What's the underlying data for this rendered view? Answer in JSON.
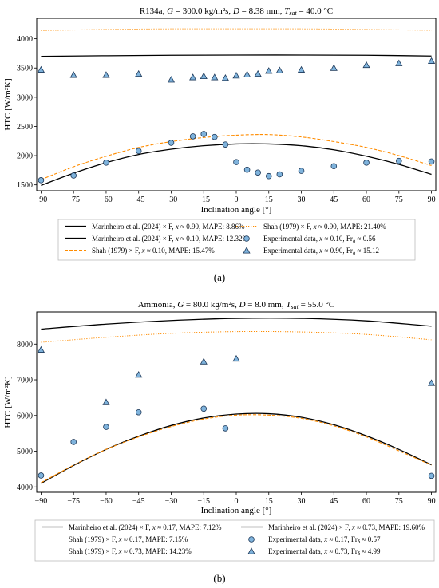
{
  "chart_data": [
    {
      "type": "line",
      "panel_label": "(a)",
      "title": "R134a, G = 300.0 kg/m²s, D = 8.38 mm, T_sat = 40.0 °C",
      "title_parts": {
        "fluid": "R134a, ",
        "G": "G",
        "G_val": " = 300.0 kg/m²s, ",
        "D": "D",
        "D_val": " = 8.38 mm, ",
        "T": "T",
        "T_sub": "sat",
        "T_val": " = 40.0 °C"
      },
      "xlabel": "Inclination angle [°]",
      "ylabel": "HTC [W/m²K]",
      "xlim": [
        -92,
        92
      ],
      "ylim": [
        1400,
        4350
      ],
      "xticks": [
        -90,
        -75,
        -60,
        -45,
        -30,
        -15,
        0,
        15,
        30,
        45,
        60,
        75,
        90
      ],
      "yticks": [
        1500,
        2000,
        2500,
        3000,
        3500,
        4000
      ],
      "series": [
        {
          "name": "Marinheiro et al. (2024) × F, x ≈ 0.90, MAPE: 8.86%",
          "style": "solid",
          "color": "#000000",
          "x": [
            -90,
            -60,
            -30,
            0,
            30,
            60,
            90
          ],
          "y": [
            3700,
            3710,
            3718,
            3722,
            3722,
            3718,
            3705
          ]
        },
        {
          "name": "Marinheiro et al. (2024) × F, x ≈ 0.10, MAPE: 12.32%",
          "style": "solid",
          "color": "#000000",
          "x": [
            -90,
            -75,
            -60,
            -45,
            -30,
            -15,
            0,
            15,
            30,
            45,
            60,
            75,
            90
          ],
          "y": [
            1490,
            1700,
            1880,
            2020,
            2110,
            2170,
            2200,
            2200,
            2170,
            2100,
            1990,
            1850,
            1680
          ]
        },
        {
          "name": "Shah (1979) × F, x ≈ 0.10, MAPE: 15.47%",
          "style": "dashed",
          "color": "#ff8c00",
          "x": [
            -90,
            -75,
            -60,
            -45,
            -30,
            -15,
            0,
            15,
            30,
            45,
            60,
            75,
            90
          ],
          "y": [
            1590,
            1810,
            1990,
            2140,
            2240,
            2310,
            2350,
            2360,
            2320,
            2240,
            2140,
            2000,
            1830
          ]
        },
        {
          "name": "Shah (1979) × F, x ≈ 0.90, MAPE: 21.40%",
          "style": "dotted",
          "color": "#ff8c00",
          "x": [
            -90,
            -60,
            -30,
            0,
            30,
            60,
            90
          ],
          "y": [
            4140,
            4160,
            4170,
            4170,
            4170,
            4160,
            4145
          ]
        },
        {
          "name": "Experimental data, x ≈ 0.10, Fr_δ ≈ 0.56",
          "style": "circle",
          "color": "#7fb3dc",
          "x": [
            -90,
            -75,
            -60,
            -45,
            -30,
            -20,
            -15,
            -10,
            -5,
            0,
            5,
            10,
            15,
            20,
            30,
            45,
            60,
            75,
            90
          ],
          "y": [
            1580,
            1660,
            1880,
            2080,
            2220,
            2330,
            2370,
            2320,
            2190,
            1890,
            1760,
            1710,
            1650,
            1680,
            1740,
            1820,
            1880,
            1910,
            1900
          ]
        },
        {
          "name": "Experimental data, x ≈ 0.90, Fr_δ ≈ 15.12",
          "style": "triangle",
          "color": "#7fb3dc",
          "x": [
            -90,
            -75,
            -60,
            -45,
            -30,
            -20,
            -15,
            -10,
            -5,
            0,
            5,
            10,
            15,
            20,
            30,
            45,
            60,
            75,
            90
          ],
          "y": [
            3470,
            3380,
            3380,
            3400,
            3300,
            3340,
            3360,
            3340,
            3330,
            3370,
            3390,
            3400,
            3450,
            3460,
            3470,
            3500,
            3550,
            3580,
            3620
          ]
        }
      ],
      "legend": {
        "rows": [
          {
            "label": "Marinheiro et al. (2024) × F, ",
            "x": "x",
            "rest": " ≈ 0.90, MAPE: 8.86%",
            "sub": "",
            "tail": ""
          },
          {
            "label": "Shah (1979) × F, ",
            "x": "x",
            "rest": " ≈ 0.90, MAPE: 21.40%",
            "sub": "",
            "tail": ""
          },
          {
            "label": "Marinheiro et al. (2024) × F, ",
            "x": "x",
            "rest": " ≈ 0.10, MAPE: 12.32%",
            "sub": "",
            "tail": ""
          },
          {
            "label": "Experimental data, ",
            "x": "x",
            "rest": " ≈ 0.10, Fr",
            "sub": "δ",
            "tail": " ≈ 0.56"
          },
          {
            "label": "Shah (1979) × F, ",
            "x": "x",
            "rest": " ≈ 0.10, MAPE: 15.47%",
            "sub": "",
            "tail": ""
          },
          {
            "label": "Experimental data, ",
            "x": "x",
            "rest": " ≈ 0.90, Fr",
            "sub": "δ",
            "tail": " ≈ 15.12"
          }
        ],
        "markers": [
          "solid",
          "dotted",
          "solid",
          "circle",
          "dashed",
          "triangle"
        ]
      }
    },
    {
      "type": "line",
      "panel_label": "(b)",
      "title": "Ammonia, G = 80.0 kg/m²s, D = 8.0 mm, T_sat = 55.0 °C",
      "title_parts": {
        "fluid": "Ammonia, ",
        "G": "G",
        "G_val": " = 80.0 kg/m²s, ",
        "D": "D",
        "D_val": " = 8.0 mm, ",
        "T": "T",
        "T_sub": "sat",
        "T_val": " = 55.0 °C"
      },
      "xlabel": "Inclination angle [°]",
      "ylabel": "HTC [W/m²K]",
      "xlim": [
        -92,
        92
      ],
      "ylim": [
        3850,
        8900
      ],
      "xticks": [
        -90,
        -75,
        -60,
        -45,
        -30,
        -15,
        0,
        15,
        30,
        45,
        60,
        75,
        90
      ],
      "yticks": [
        4000,
        5000,
        6000,
        7000,
        8000
      ],
      "series": [
        {
          "name": "Marinheiro et al. (2024) × F, x ≈ 0.17, MAPE: 7.12%",
          "style": "solid",
          "color": "#000000",
          "x": [
            -90,
            -75,
            -60,
            -45,
            -30,
            -15,
            0,
            15,
            30,
            45,
            60,
            75,
            90
          ],
          "y": [
            4100,
            4600,
            5050,
            5420,
            5720,
            5930,
            6040,
            6050,
            5950,
            5740,
            5430,
            5050,
            4620
          ]
        },
        {
          "name": "Marinheiro et al. (2024) × F, x ≈ 0.73, MAPE: 19.60%",
          "style": "solid",
          "color": "#000000",
          "x": [
            -90,
            -60,
            -30,
            0,
            30,
            60,
            90
          ],
          "y": [
            8420,
            8560,
            8660,
            8720,
            8720,
            8650,
            8500
          ]
        },
        {
          "name": "Shah (1979) × F, x ≈ 0.17, MAPE: 7.15%",
          "style": "dashed",
          "color": "#ff8c00",
          "x": [
            -90,
            -75,
            -60,
            -45,
            -30,
            -15,
            0,
            15,
            30,
            45,
            60,
            75,
            90
          ],
          "y": [
            4120,
            4610,
            5050,
            5400,
            5690,
            5900,
            6010,
            6010,
            5920,
            5710,
            5400,
            5010,
            4610
          ]
        },
        {
          "name": "Shah (1979) × F, x ≈ 0.73, MAPE: 14.23%",
          "style": "dotted",
          "color": "#ff8c00",
          "x": [
            -90,
            -60,
            -30,
            0,
            30,
            60,
            90
          ],
          "y": [
            8050,
            8190,
            8300,
            8350,
            8340,
            8270,
            8120
          ]
        },
        {
          "name": "Experimental data, x ≈ 0.17, Fr_δ ≈ 0.57",
          "style": "circle",
          "color": "#7fb3dc",
          "x": [
            -90,
            -75,
            -60,
            -45,
            -15,
            -5,
            90
          ],
          "y": [
            4320,
            5260,
            5680,
            6090,
            6190,
            5640,
            4310
          ]
        },
        {
          "name": "Experimental data, x ≈ 0.73, Fr_δ ≈ 4.99",
          "style": "triangle",
          "color": "#7fb3dc",
          "x": [
            -90,
            -60,
            -45,
            -15,
            0,
            90
          ],
          "y": [
            7840,
            6370,
            7140,
            7510,
            7590,
            6910
          ]
        }
      ],
      "legend": {
        "rows": [
          {
            "label": "Marinheiro et al. (2024) × F, ",
            "x": "x",
            "rest": " ≈ 0.17, MAPE: 7.12%",
            "sub": "",
            "tail": ""
          },
          {
            "label": "Marinheiro et al. (2024) × F, ",
            "x": "x",
            "rest": " ≈ 0.73, MAPE: 19.60%",
            "sub": "",
            "tail": ""
          },
          {
            "label": "Shah (1979) × F, ",
            "x": "x",
            "rest": " ≈ 0.17, MAPE: 7.15%",
            "sub": "",
            "tail": ""
          },
          {
            "label": "Experimental data, ",
            "x": "x",
            "rest": " ≈ 0.17, Fr",
            "sub": "δ",
            "tail": " ≈ 0.57"
          },
          {
            "label": "Shah (1979) × F, ",
            "x": "x",
            "rest": " ≈ 0.73, MAPE: 14.23%",
            "sub": "",
            "tail": ""
          },
          {
            "label": "Experimental data, ",
            "x": "x",
            "rest": " ≈ 0.73, Fr",
            "sub": "δ",
            "tail": " ≈ 4.99"
          }
        ],
        "markers": [
          "solid",
          "solid",
          "dashed",
          "circle",
          "dotted",
          "triangle"
        ]
      }
    }
  ]
}
